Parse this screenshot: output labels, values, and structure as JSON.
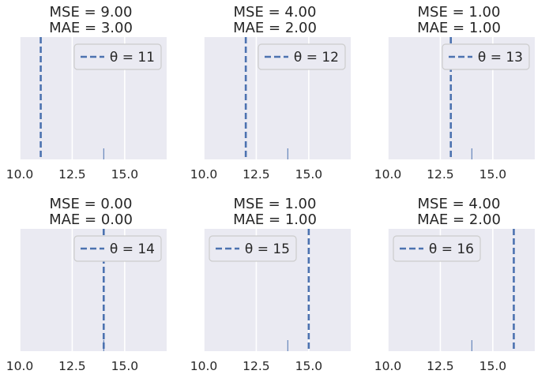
{
  "chart_data": [
    {
      "type": "line",
      "title_lines": [
        "MSE = 9.00",
        "MAE = 3.00"
      ],
      "theta": 11,
      "legend_text": "θ = 11",
      "legend_position": "top-right",
      "observation": 14,
      "xlim": [
        10,
        17
      ],
      "xticks": [
        10.0,
        12.5,
        15.0
      ],
      "xtick_labels": [
        "10.0",
        "12.5",
        "15.0"
      ],
      "yticks_visible": false,
      "grid": true
    },
    {
      "type": "line",
      "title_lines": [
        "MSE = 4.00",
        "MAE = 2.00"
      ],
      "theta": 12,
      "legend_text": "θ = 12",
      "legend_position": "top-right",
      "observation": 14,
      "xlim": [
        10,
        17
      ],
      "xticks": [
        10.0,
        12.5,
        15.0
      ],
      "xtick_labels": [
        "10.0",
        "12.5",
        "15.0"
      ],
      "yticks_visible": false,
      "grid": true
    },
    {
      "type": "line",
      "title_lines": [
        "MSE = 1.00",
        "MAE = 1.00"
      ],
      "theta": 13,
      "legend_text": "θ = 13",
      "legend_position": "top-right",
      "observation": 14,
      "xlim": [
        10,
        17
      ],
      "xticks": [
        10.0,
        12.5,
        15.0
      ],
      "xtick_labels": [
        "10.0",
        "12.5",
        "15.0"
      ],
      "yticks_visible": false,
      "grid": true
    },
    {
      "type": "line",
      "title_lines": [
        "MSE = 0.00",
        "MAE = 0.00"
      ],
      "theta": 14,
      "legend_text": "θ = 14",
      "legend_position": "top-right",
      "observation": 14,
      "xlim": [
        10,
        17
      ],
      "xticks": [
        10.0,
        12.5,
        15.0
      ],
      "xtick_labels": [
        "10.0",
        "12.5",
        "15.0"
      ],
      "yticks_visible": false,
      "grid": true
    },
    {
      "type": "line",
      "title_lines": [
        "MSE = 1.00",
        "MAE = 1.00"
      ],
      "theta": 15,
      "legend_text": "θ = 15",
      "legend_position": "top-left",
      "observation": 14,
      "xlim": [
        10,
        17
      ],
      "xticks": [
        10.0,
        12.5,
        15.0
      ],
      "xtick_labels": [
        "10.0",
        "12.5",
        "15.0"
      ],
      "yticks_visible": false,
      "grid": true
    },
    {
      "type": "line",
      "title_lines": [
        "MSE = 4.00",
        "MAE = 2.00"
      ],
      "theta": 16,
      "legend_text": "θ = 16",
      "legend_position": "top-left",
      "observation": 14,
      "xlim": [
        10,
        17
      ],
      "xticks": [
        10.0,
        12.5,
        15.0
      ],
      "xtick_labels": [
        "10.0",
        "12.5",
        "15.0"
      ],
      "yticks_visible": false,
      "grid": true
    }
  ],
  "colors": {
    "panel_background": "#eaeaf2",
    "grid": "#ffffff",
    "theta_line": "#4c72b0",
    "observation": "#4c72b0",
    "text": "#262626",
    "legend_border": "#cccccc"
  }
}
